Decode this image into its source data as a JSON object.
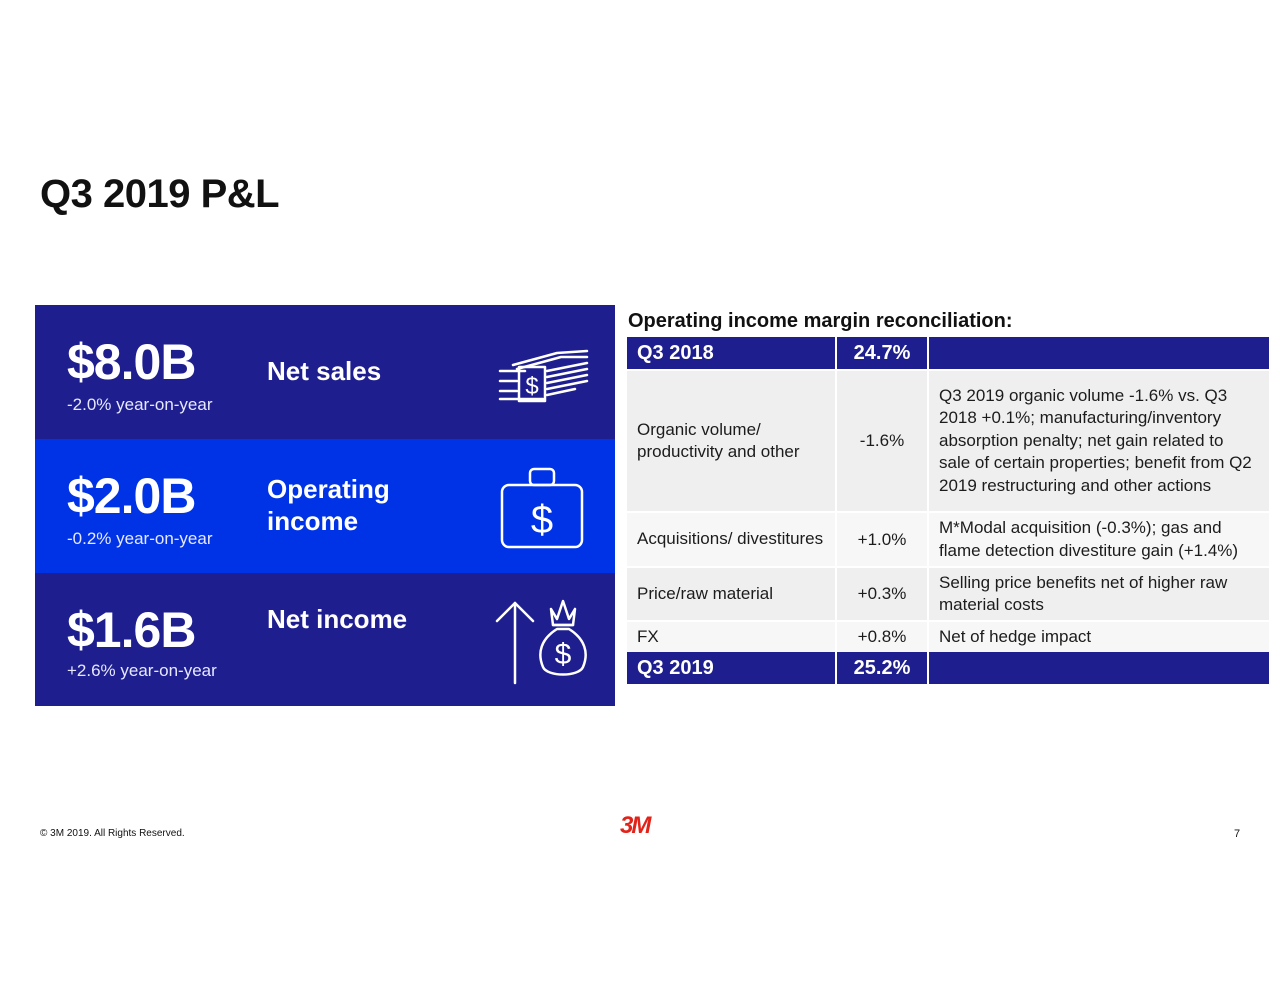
{
  "page": {
    "title": "Q3 2019 P&L"
  },
  "metrics": [
    {
      "value": "$8.0B",
      "label": "Net sales",
      "change": "-2.0% year-on-year",
      "icon": "money-stack-icon",
      "bg": "#1e1e8f"
    },
    {
      "value": "$2.0B",
      "label": "Operating income",
      "change": "-0.2% year-on-year",
      "icon": "briefcase-dollar-icon",
      "bg": "#0033e6"
    },
    {
      "value": "$1.6B",
      "label": "Net income",
      "change": "+2.6% year-on-year",
      "icon": "arrow-moneybag-icon",
      "bg": "#1e1e8f"
    }
  ],
  "reconciliation": {
    "title": "Operating income margin reconciliation:",
    "header": {
      "label": "Q3 2018",
      "value": "24.7%"
    },
    "rows": [
      {
        "label": "Organic volume/ productivity and other",
        "value": "-1.6%",
        "note": "Q3 2019 organic volume -1.6% vs. Q3 2018 +0.1%; manufacturing/inventory absorption penalty; net gain related to sale of certain properties; benefit from Q2 2019 restructuring and other actions"
      },
      {
        "label": "Acquisitions/ divestitures",
        "value": "+1.0%",
        "note": "M*Modal acquisition (-0.3%); gas and flame detection divestiture gain (+1.4%)"
      },
      {
        "label": "Price/raw material",
        "value": "+0.3%",
        "note": "Selling price benefits net of higher raw material costs"
      },
      {
        "label": "FX",
        "value": "+0.8%",
        "note": "Net of hedge impact"
      }
    ],
    "footer": {
      "label": "Q3 2019",
      "value": "25.2%"
    }
  },
  "footer": {
    "copyright": "© 3M 2019. All Rights Reserved.",
    "logo": "3M",
    "page_number": "7"
  },
  "colors": {
    "navy": "#1e1e8f",
    "blue": "#0033e6",
    "logo_red": "#e2231a"
  }
}
